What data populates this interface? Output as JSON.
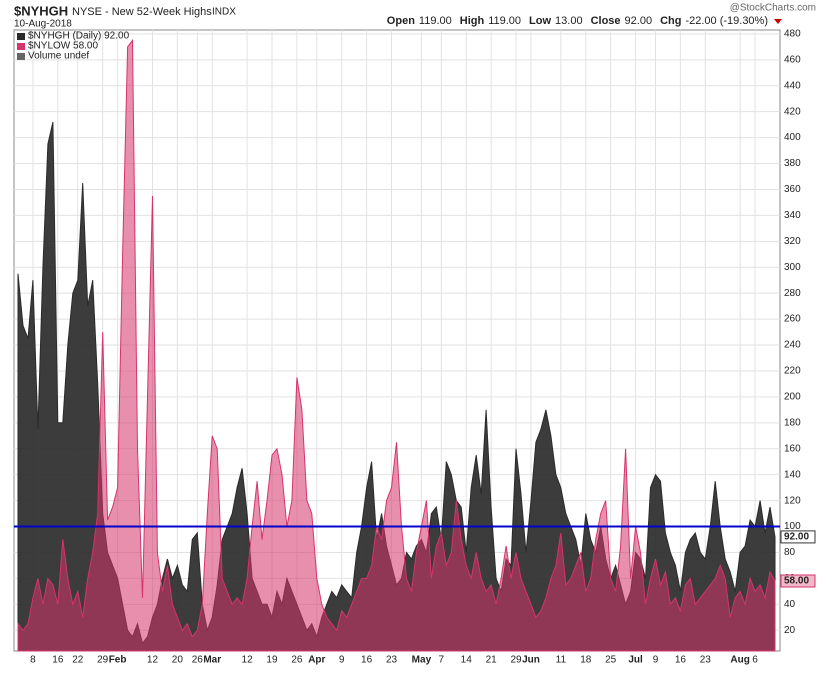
{
  "header": {
    "symbol": "$NYHGH",
    "name": "NYSE - New 52-Week Highs",
    "exchange": "INDX",
    "date": "10-Aug-2018",
    "source": "@StockCharts.com",
    "quote": [
      {
        "label": "Open",
        "value": "119.00"
      },
      {
        "label": "High",
        "value": "119.00"
      },
      {
        "label": "Low",
        "value": "13.00"
      },
      {
        "label": "Close",
        "value": "92.00"
      },
      {
        "label": "Chg",
        "value": "-22.00 (-19.30%)"
      }
    ]
  },
  "chart_data": {
    "type": "area",
    "legend_extra": "Volume undef",
    "legend": "top-left",
    "grid": true,
    "hline": 100,
    "hline_color": "#0000cc",
    "ylim": [
      4,
      483
    ],
    "yticks": [
      20,
      40,
      60,
      80,
      100,
      120,
      140,
      160,
      180,
      200,
      220,
      240,
      260,
      280,
      300,
      320,
      340,
      360,
      380,
      400,
      420,
      440,
      460,
      480
    ],
    "categories": [
      null,
      null,
      null,
      "8",
      null,
      null,
      null,
      null,
      "16",
      null,
      null,
      null,
      "22",
      null,
      null,
      null,
      null,
      "29",
      null,
      null,
      "Feb",
      null,
      null,
      null,
      null,
      null,
      null,
      "12",
      null,
      null,
      null,
      null,
      "20",
      null,
      null,
      null,
      "26",
      null,
      null,
      "Mar",
      null,
      null,
      null,
      null,
      null,
      null,
      "12",
      null,
      null,
      null,
      null,
      "19",
      null,
      null,
      null,
      null,
      "26",
      null,
      null,
      null,
      "Apr",
      null,
      null,
      null,
      null,
      "9",
      null,
      null,
      null,
      null,
      "16",
      null,
      null,
      null,
      null,
      "23",
      null,
      null,
      null,
      null,
      null,
      "May",
      null,
      null,
      null,
      "7",
      null,
      null,
      null,
      null,
      "14",
      null,
      null,
      null,
      null,
      "21",
      null,
      null,
      null,
      null,
      "29",
      null,
      null,
      "Jun",
      null,
      null,
      null,
      null,
      null,
      "11",
      null,
      null,
      null,
      null,
      "18",
      null,
      null,
      null,
      null,
      "25",
      null,
      null,
      null,
      null,
      "Jul",
      null,
      null,
      null,
      "9",
      null,
      null,
      null,
      null,
      "16",
      null,
      null,
      null,
      null,
      "23",
      null,
      null,
      null,
      null,
      null,
      null,
      "Aug",
      null,
      null,
      "6",
      null,
      null,
      null,
      null
    ],
    "series": [
      {
        "name": "$NYHGH (Daily) 92.00",
        "color": "#2b2b2b",
        "last_value_label": "92.00",
        "values": [
          295,
          255,
          245,
          290,
          175,
          300,
          395,
          412,
          180,
          180,
          240,
          280,
          290,
          365,
          270,
          290,
          210,
          110,
          80,
          70,
          60,
          40,
          20,
          15,
          25,
          10,
          15,
          30,
          40,
          60,
          75,
          60,
          70,
          55,
          50,
          90,
          95,
          40,
          20,
          30,
          55,
          90,
          100,
          110,
          130,
          145,
          110,
          60,
          50,
          40,
          40,
          30,
          50,
          40,
          60,
          50,
          40,
          30,
          20,
          25,
          15,
          30,
          40,
          50,
          45,
          55,
          50,
          45,
          80,
          100,
          130,
          150,
          90,
          110,
          85,
          70,
          55,
          60,
          80,
          75,
          85,
          90,
          80,
          110,
          115,
          90,
          150,
          140,
          120,
          115,
          80,
          130,
          155,
          125,
          190,
          115,
          60,
          50,
          75,
          70,
          160,
          125,
          80,
          120,
          165,
          175,
          190,
          170,
          140,
          130,
          110,
          100,
          90,
          70,
          110,
          90,
          80,
          100,
          75,
          60,
          70,
          55,
          40,
          50,
          80,
          75,
          60,
          130,
          140,
          135,
          95,
          80,
          70,
          50,
          80,
          90,
          95,
          80,
          75,
          100,
          135,
          100,
          75,
          65,
          50,
          80,
          85,
          105,
          100,
          120,
          95,
          115,
          92
        ]
      },
      {
        "name": "$NYLOW 58.00",
        "color": "#d6336c",
        "last_value_label": "58.00",
        "values": [
          25,
          20,
          25,
          45,
          60,
          40,
          60,
          55,
          40,
          90,
          60,
          40,
          50,
          30,
          60,
          80,
          110,
          250,
          105,
          115,
          130,
          310,
          470,
          475,
          160,
          45,
          200,
          355,
          80,
          50,
          70,
          40,
          30,
          20,
          25,
          15,
          20,
          40,
          110,
          170,
          160,
          60,
          50,
          40,
          45,
          40,
          60,
          100,
          135,
          90,
          120,
          155,
          160,
          140,
          100,
          120,
          215,
          190,
          120,
          110,
          60,
          40,
          30,
          25,
          20,
          35,
          30,
          40,
          50,
          60,
          60,
          70,
          100,
          90,
          120,
          130,
          165,
          100,
          60,
          50,
          80,
          100,
          120,
          60,
          85,
          95,
          70,
          80,
          120,
          90,
          70,
          60,
          80,
          60,
          50,
          55,
          40,
          60,
          85,
          60,
          80,
          60,
          50,
          40,
          30,
          35,
          45,
          60,
          70,
          95,
          55,
          60,
          70,
          80,
          50,
          60,
          90,
          110,
          120,
          60,
          50,
          85,
          160,
          60,
          100,
          80,
          40,
          60,
          75,
          55,
          65,
          40,
          45,
          35,
          55,
          60,
          40,
          45,
          50,
          55,
          60,
          70,
          60,
          30,
          45,
          50,
          40,
          60,
          50,
          55,
          45,
          65,
          58
        ]
      }
    ]
  }
}
